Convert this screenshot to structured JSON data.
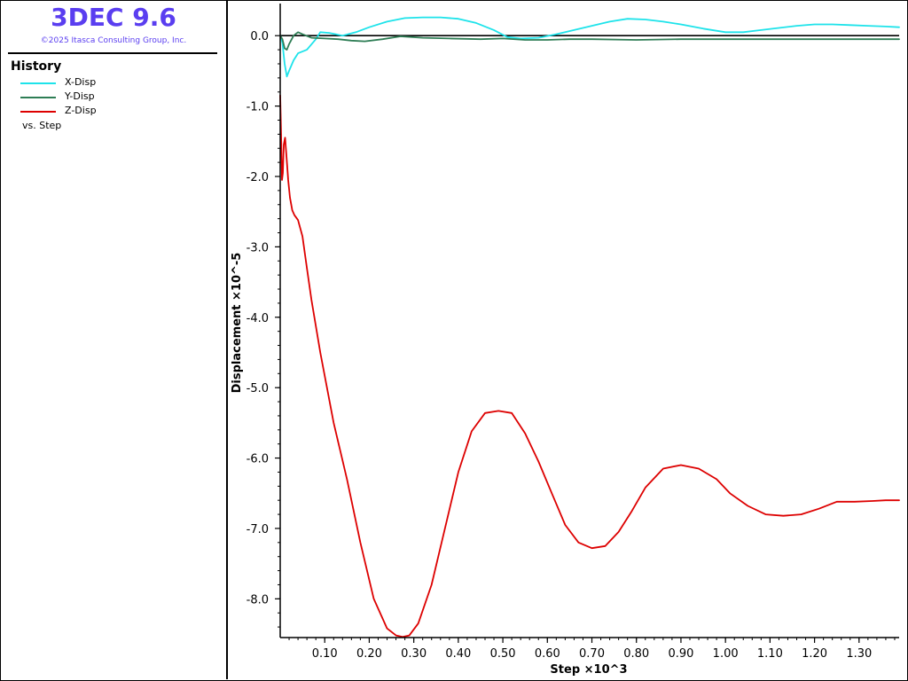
{
  "app": {
    "title": "3DEC 9.6",
    "copyright": "©2025 Itasca Consulting Group, Inc."
  },
  "panel": {
    "heading": "History",
    "legend": [
      {
        "label": "X-Disp",
        "color": "#1ee3ea"
      },
      {
        "label": "Y-Disp",
        "color": "#2e7d55"
      },
      {
        "label": "Z-Disp",
        "color": "#dd0000"
      }
    ],
    "vs_label": "vs. Step"
  },
  "chart_data": {
    "type": "line",
    "title": "",
    "xlabel": "Step ×10^3",
    "ylabel": "Displacement  ×10^-5",
    "xlim": [
      0.0,
      1.39
    ],
    "ylim": [
      -8.55,
      0.28
    ],
    "x_ticks": [
      "0.10",
      "0.20",
      "0.30",
      "0.40",
      "0.50",
      "0.60",
      "0.70",
      "0.80",
      "0.90",
      "1.00",
      "1.10",
      "1.20",
      "1.30"
    ],
    "y_ticks": [
      "0.0",
      "-1.0",
      "-2.0",
      "-3.0",
      "-4.0",
      "-5.0",
      "-6.0",
      "-7.0",
      "-8.0"
    ],
    "zero_line": true,
    "series": [
      {
        "name": "X-Disp",
        "color": "#1ee3ea",
        "x": [
          0.0,
          0.005,
          0.01,
          0.015,
          0.02,
          0.03,
          0.04,
          0.06,
          0.08,
          0.09,
          0.11,
          0.14,
          0.17,
          0.2,
          0.24,
          0.28,
          0.32,
          0.36,
          0.4,
          0.44,
          0.48,
          0.51,
          0.54,
          0.58,
          0.62,
          0.66,
          0.7,
          0.74,
          0.78,
          0.82,
          0.86,
          0.9,
          0.95,
          1.0,
          1.04,
          1.08,
          1.12,
          1.16,
          1.2,
          1.24,
          1.28,
          1.32,
          1.36,
          1.39
        ],
        "y": [
          0.0,
          -0.1,
          -0.4,
          -0.58,
          -0.5,
          -0.35,
          -0.25,
          -0.2,
          -0.05,
          0.05,
          0.04,
          0.0,
          0.05,
          0.12,
          0.2,
          0.25,
          0.26,
          0.26,
          0.24,
          0.18,
          0.08,
          -0.02,
          -0.04,
          -0.03,
          0.02,
          0.08,
          0.14,
          0.2,
          0.24,
          0.23,
          0.2,
          0.16,
          0.1,
          0.05,
          0.05,
          0.08,
          0.11,
          0.14,
          0.16,
          0.16,
          0.15,
          0.14,
          0.13,
          0.12
        ]
      },
      {
        "name": "Y-Disp",
        "color": "#2e7d55",
        "x": [
          0.0,
          0.005,
          0.01,
          0.015,
          0.02,
          0.03,
          0.04,
          0.05,
          0.07,
          0.1,
          0.13,
          0.16,
          0.19,
          0.23,
          0.27,
          0.32,
          0.38,
          0.45,
          0.5,
          0.55,
          0.6,
          0.65,
          0.7,
          0.8,
          0.9,
          1.0,
          1.1,
          1.2,
          1.3,
          1.39
        ],
        "y": [
          0.0,
          -0.05,
          -0.18,
          -0.2,
          -0.12,
          0.0,
          0.05,
          0.02,
          -0.03,
          -0.04,
          -0.05,
          -0.07,
          -0.08,
          -0.05,
          -0.01,
          -0.03,
          -0.04,
          -0.05,
          -0.04,
          -0.06,
          -0.06,
          -0.05,
          -0.05,
          -0.06,
          -0.05,
          -0.05,
          -0.05,
          -0.05,
          -0.05,
          -0.05
        ]
      },
      {
        "name": "Z-Disp",
        "color": "#dd0000",
        "x": [
          0.0,
          0.002,
          0.004,
          0.006,
          0.008,
          0.011,
          0.014,
          0.018,
          0.022,
          0.027,
          0.032,
          0.04,
          0.05,
          0.06,
          0.07,
          0.09,
          0.12,
          0.15,
          0.18,
          0.21,
          0.24,
          0.26,
          0.275,
          0.29,
          0.31,
          0.34,
          0.37,
          0.4,
          0.43,
          0.46,
          0.49,
          0.52,
          0.55,
          0.58,
          0.61,
          0.64,
          0.67,
          0.7,
          0.73,
          0.76,
          0.79,
          0.82,
          0.86,
          0.9,
          0.94,
          0.98,
          1.01,
          1.05,
          1.09,
          1.13,
          1.17,
          1.21,
          1.25,
          1.29,
          1.33,
          1.36,
          1.39
        ],
        "y": [
          -0.85,
          -1.4,
          -2.05,
          -1.95,
          -1.55,
          -1.45,
          -1.7,
          -2.05,
          -2.3,
          -2.48,
          -2.55,
          -2.62,
          -2.85,
          -3.3,
          -3.75,
          -4.5,
          -5.5,
          -6.3,
          -7.2,
          -8.0,
          -8.42,
          -8.52,
          -8.54,
          -8.52,
          -8.35,
          -7.8,
          -7.0,
          -6.2,
          -5.62,
          -5.36,
          -5.33,
          -5.36,
          -5.65,
          -6.05,
          -6.5,
          -6.95,
          -7.2,
          -7.28,
          -7.25,
          -7.05,
          -6.75,
          -6.42,
          -6.15,
          -6.1,
          -6.15,
          -6.3,
          -6.5,
          -6.68,
          -6.8,
          -6.82,
          -6.8,
          -6.72,
          -6.62,
          -6.62,
          -6.61,
          -6.6,
          -6.6
        ]
      }
    ]
  }
}
